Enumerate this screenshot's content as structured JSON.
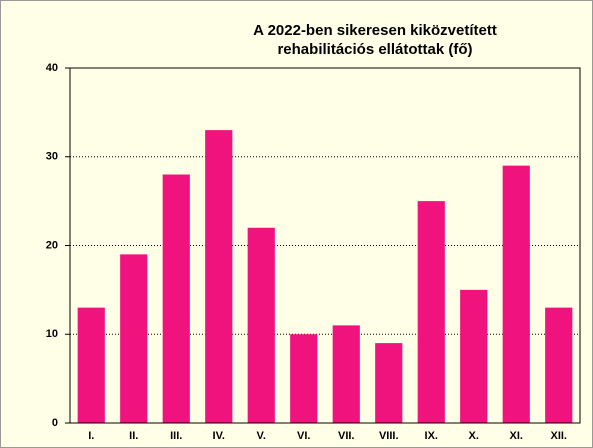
{
  "chart_data": {
    "type": "bar",
    "title": [
      "A 2022-ben sikeresen kiközvetített",
      "rehabilitációs ellátottak (fő)"
    ],
    "categories": [
      "I.",
      "II.",
      "III.",
      "IV.",
      "V.",
      "VI.",
      "VII.",
      "VIII.",
      "IX.",
      "X.",
      "XI.",
      "XII."
    ],
    "values": [
      13,
      19,
      28,
      33,
      22,
      10,
      11,
      9,
      25,
      15,
      29,
      13
    ],
    "color": "#f0137e",
    "ylim": [
      0,
      40
    ],
    "yticks": [
      0,
      10,
      20,
      30,
      40
    ],
    "grid": true
  }
}
